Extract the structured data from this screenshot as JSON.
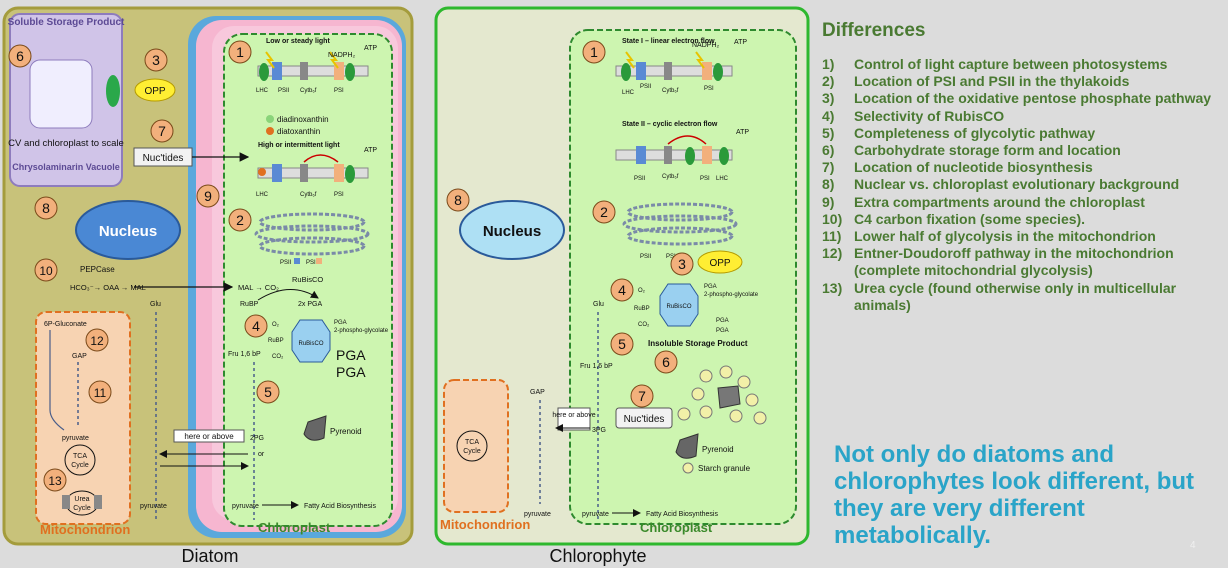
{
  "diatom": {
    "caption": "Diatom",
    "storage_title": "Soluble Storage Product",
    "cv_caption": "CV and chloroplast to scale",
    "vacuole_label": "Chrysolaminarin Vacuole",
    "opp": "OPP",
    "nuctides": "Nuc'tides",
    "nucleus": "Nucleus",
    "pepcase": "PEPCase",
    "c4_pathway": "HCO₃⁻→ OAA → MAL",
    "mal_co2": "MAL → CO₂",
    "rubisco_top": "RuBisCO",
    "rubp": "RuBP",
    "two_pga": "2x PGA",
    "glu": "Glu",
    "fru16bp": "Fru 1,6 bP",
    "twopg": "2PG",
    "or": "or",
    "pyruvate_left": "pyruvate",
    "pyruvate_right": "pyruvate",
    "here_or_above": "here or above",
    "pyrenoid": "Pyrenoid",
    "fatty_acid": "Fatty Acid Biosynthesis",
    "pga_big_1": "PGA",
    "pga_big_2": "PGA",
    "mito": {
      "label": "Mitochondrion",
      "gluconate": "6P-Gluconate",
      "gap": "GAP",
      "pyruvate": "pyruvate",
      "tca": "TCA Cycle",
      "urea": "Urea Cycle"
    },
    "chloroplast_label": "Chloroplast",
    "light_low": "Low or steady light",
    "light_high": "High or intermittent light",
    "pigment_1": "diadinoxanthin",
    "pigment_2": "diatoxanthin"
  },
  "chlorophyte": {
    "caption": "Chlorophyte",
    "nucleus": "Nucleus",
    "state1": "State I – linear electron flow",
    "state2": "State II – cyclic electron flow",
    "opp": "OPP",
    "glu": "Glu",
    "fru16bp": "Fru 1,6 bP",
    "insoluble": "Insoluble Storage Product",
    "nuctides": "Nuc'tides",
    "threepg": "3PG",
    "gap": "GAP",
    "here_or_above": "here or above",
    "tca": "TCA Cycle",
    "pyruvate_left": "pyruvate",
    "pyruvate_right": "pyruvate",
    "fatty_acid": "Fatty Acid Biosynthesis",
    "pyrenoid": "Pyrenoid",
    "starch": "Starch granule",
    "mito_label": "Mitochondrion",
    "chloroplast_label": "Chloroplast"
  },
  "common": {
    "nadph": "NADPH₂",
    "atp": "ATP",
    "psii": "PSII",
    "psi": "PSI",
    "lhc": "LHC",
    "cytb6f": "Cytb₆f",
    "rubisco": "RuBisCO",
    "o2": "O₂",
    "co2": "CO₂",
    "pga": "PGA",
    "pga_2phospho": "2-phospho-glycolate",
    "rubp": "RuBP"
  },
  "differences": {
    "heading": "Differences",
    "items": [
      {
        "num": "1)",
        "text": "Control of light capture between photosystems"
      },
      {
        "num": "2)",
        "text": "Location of PSI and PSII in the thylakoids"
      },
      {
        "num": "3)",
        "text": "Location of the oxidative pentose phosphate pathway"
      },
      {
        "num": "4)",
        "text": "Selectivity of RubisCO"
      },
      {
        "num": "5)",
        "text": "Completeness of glycolytic pathway"
      },
      {
        "num": "6)",
        "text": "Carbohydrate storage form and location"
      },
      {
        "num": "7)",
        "text": "Location of nucleotide biosynthesis"
      },
      {
        "num": "8)",
        "text": "Nuclear vs. chloroplast evolutionary background"
      },
      {
        "num": "9)",
        "text": "Extra compartments around the chloroplast"
      },
      {
        "num": "10)",
        "text": "C4 carbon fixation (some species)."
      },
      {
        "num": "11)",
        "text": "Lower half of glycolysis in the mitochondrion"
      },
      {
        "num": "12)",
        "text": "Entner-Doudoroff pathway in the mitochondrion (complete mitochondrial glycolysis)"
      },
      {
        "num": "13)",
        "text": "Urea cycle (found otherwise only in multicellular animals)"
      }
    ]
  },
  "tagline": "Not only do diatoms and chlorophytes look different, but they are very different metabolically.",
  "page_number": "4",
  "colors": {
    "diatom_cell": "#c8c27a",
    "chlorophyte_cell": "#e4e8cf",
    "chloroplast": "#cdf5b0",
    "mito": "#f7d3b2",
    "nucleus": "#4a88d4",
    "badge": "#f2b07c",
    "heading_green": "#4a7a32",
    "tagline_blue": "#2aa4c8"
  }
}
